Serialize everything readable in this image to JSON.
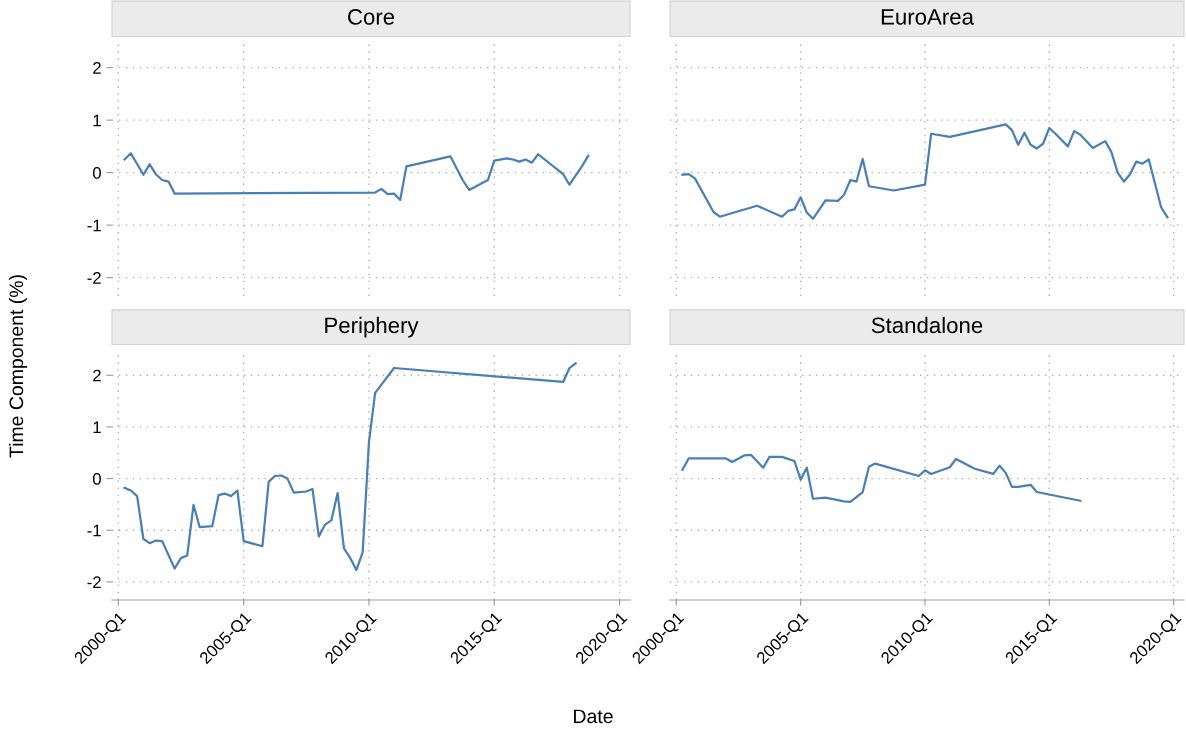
{
  "chart_data": [
    {
      "type": "line",
      "title": "Core",
      "ylabel": "Time Component (%)",
      "xlim": [
        "1999-10",
        "2020-06"
      ],
      "xticks": [
        "2000-01",
        "2005-01",
        "2010-01",
        "2015-01",
        "2020-01"
      ],
      "ylim": [
        -2.35,
        2.45
      ],
      "yticks": [
        -2,
        -1,
        0,
        1,
        2
      ],
      "tick_labels": "y",
      "grid": true,
      "series": [
        {
          "color": "#4a7fb5",
          "x": [
            "2000-04",
            "2000-07",
            "2001-01",
            "2001-04",
            "2001-07",
            "2001-10",
            "2002-01",
            "2002-04",
            "2010-04",
            "2010-07",
            "2010-10",
            "2011-01",
            "2011-04",
            "2011-07",
            "2013-04",
            "2013-10",
            "2014-01",
            "2014-10",
            "2015-01",
            "2015-07",
            "2015-10",
            "2016-01",
            "2016-04",
            "2016-07",
            "2016-10",
            "2017-10",
            "2018-01",
            "2018-07",
            "2018-10"
          ],
          "values": [
            0.25,
            0.37,
            -0.04,
            0.16,
            -0.03,
            -0.14,
            -0.17,
            -0.4,
            -0.38,
            -0.31,
            -0.41,
            -0.4,
            -0.52,
            0.12,
            0.31,
            -0.15,
            -0.33,
            -0.14,
            0.23,
            0.27,
            0.25,
            0.21,
            0.25,
            0.19,
            0.35,
            -0.03,
            -0.23,
            0.12,
            0.32
          ]
        }
      ]
    },
    {
      "type": "line",
      "title": "EuroArea",
      "xlim": [
        "1999-10",
        "2020-06"
      ],
      "xticks": [
        "2000-01",
        "2005-01",
        "2010-01",
        "2015-01",
        "2020-01"
      ],
      "ylim": [
        -2.35,
        2.45
      ],
      "yticks": [
        -2,
        -1,
        0,
        1,
        2
      ],
      "tick_labels": false,
      "grid": true,
      "series": [
        {
          "color": "#4a7fb5",
          "x": [
            "2000-04",
            "2000-07",
            "2000-10",
            "2001-07",
            "2001-10",
            "2003-04",
            "2004-04",
            "2004-07",
            "2004-10",
            "2005-01",
            "2005-04",
            "2005-07",
            "2006-01",
            "2006-07",
            "2006-10",
            "2007-01",
            "2007-04",
            "2007-07",
            "2007-10",
            "2008-10",
            "2010-01",
            "2010-04",
            "2011-01",
            "2013-04",
            "2013-07",
            "2013-10",
            "2014-01",
            "2014-04",
            "2014-07",
            "2014-10",
            "2015-01",
            "2015-04",
            "2015-10",
            "2016-01",
            "2016-04",
            "2016-10",
            "2017-04",
            "2017-07",
            "2017-10",
            "2018-01",
            "2018-04",
            "2018-07",
            "2018-10",
            "2019-01",
            "2019-07",
            "2019-10"
          ],
          "values": [
            -0.04,
            -0.03,
            -0.11,
            -0.75,
            -0.84,
            -0.63,
            -0.84,
            -0.73,
            -0.7,
            -0.47,
            -0.76,
            -0.88,
            -0.53,
            -0.54,
            -0.42,
            -0.14,
            -0.17,
            0.26,
            -0.26,
            -0.34,
            -0.23,
            0.74,
            0.68,
            0.92,
            0.81,
            0.53,
            0.76,
            0.53,
            0.46,
            0.55,
            0.85,
            0.74,
            0.5,
            0.79,
            0.72,
            0.47,
            0.6,
            0.39,
            0.0,
            -0.17,
            -0.03,
            0.21,
            0.17,
            0.25,
            -0.66,
            -0.85
          ]
        }
      ]
    },
    {
      "type": "line",
      "title": "Periphery",
      "xlabel": "Date",
      "xlim": [
        "1999-10",
        "2020-06"
      ],
      "xticks": [
        {
          "value": "2000-01",
          "label": "2000-Q1"
        },
        {
          "value": "2005-01",
          "label": "2005-Q1"
        },
        {
          "value": "2010-01",
          "label": "2010-Q1"
        },
        {
          "value": "2015-01",
          "label": "2015-Q1"
        },
        {
          "value": "2020-01",
          "label": "2020-Q1"
        }
      ],
      "ylim": [
        -2.35,
        2.45
      ],
      "yticks": [
        -2,
        -1,
        0,
        1,
        2
      ],
      "grid": true,
      "series": [
        {
          "color": "#4a7fb5",
          "x": [
            "2000-04",
            "2000-07",
            "2000-10",
            "2001-01",
            "2001-04",
            "2001-07",
            "2001-10",
            "2002-04",
            "2002-07",
            "2002-10",
            "2003-01",
            "2003-04",
            "2003-10",
            "2004-01",
            "2004-04",
            "2004-07",
            "2004-10",
            "2005-01",
            "2005-10",
            "2006-01",
            "2006-04",
            "2006-07",
            "2006-10",
            "2007-01",
            "2007-07",
            "2007-10",
            "2008-01",
            "2008-04",
            "2008-07",
            "2008-10",
            "2009-01",
            "2009-04",
            "2009-07",
            "2009-10",
            "2010-01",
            "2010-04",
            "2011-01",
            "2017-10",
            "2018-01",
            "2018-04"
          ],
          "values": [
            -0.18,
            -0.23,
            -0.34,
            -1.17,
            -1.25,
            -1.2,
            -1.21,
            -1.74,
            -1.54,
            -1.49,
            -0.51,
            -0.94,
            -0.92,
            -0.32,
            -0.29,
            -0.34,
            -0.23,
            -1.21,
            -1.31,
            -0.06,
            0.05,
            0.06,
            0.0,
            -0.27,
            -0.25,
            -0.2,
            -1.12,
            -0.89,
            -0.81,
            -0.28,
            -1.35,
            -1.53,
            -1.77,
            -1.43,
            0.71,
            1.66,
            2.14,
            1.87,
            2.14,
            2.23
          ]
        }
      ]
    },
    {
      "type": "line",
      "title": "Standalone",
      "xlim": [
        "1999-10",
        "2020-06"
      ],
      "xticks": [
        {
          "value": "2000-01",
          "label": "2000-Q1"
        },
        {
          "value": "2005-01",
          "label": "2005-Q1"
        },
        {
          "value": "2010-01",
          "label": "2010-Q1"
        },
        {
          "value": "2015-01",
          "label": "2015-Q1"
        },
        {
          "value": "2020-01",
          "label": "2020-Q1"
        }
      ],
      "ylim": [
        -2.35,
        2.45
      ],
      "yticks": [
        -2,
        -1,
        0,
        1,
        2
      ],
      "tick_labels": "x",
      "grid": true,
      "series": [
        {
          "color": "#4a7fb5",
          "x": [
            "2000-04",
            "2000-07",
            "2002-01",
            "2002-04",
            "2002-10",
            "2003-01",
            "2003-07",
            "2003-10",
            "2004-04",
            "2004-10",
            "2005-01",
            "2005-04",
            "2005-07",
            "2006-01",
            "2006-10",
            "2007-01",
            "2007-07",
            "2007-10",
            "2008-01",
            "2009-10",
            "2010-01",
            "2010-04",
            "2011-01",
            "2011-04",
            "2012-01",
            "2012-10",
            "2013-01",
            "2013-04",
            "2013-07",
            "2013-10",
            "2014-04",
            "2014-07",
            "2016-04"
          ],
          "values": [
            0.17,
            0.39,
            0.39,
            0.32,
            0.45,
            0.46,
            0.21,
            0.42,
            0.42,
            0.34,
            -0.02,
            0.21,
            -0.39,
            -0.37,
            -0.44,
            -0.45,
            -0.26,
            0.23,
            0.29,
            0.05,
            0.16,
            0.09,
            0.22,
            0.38,
            0.19,
            0.09,
            0.25,
            0.11,
            -0.16,
            -0.16,
            -0.12,
            -0.26,
            -0.43
          ]
        }
      ]
    }
  ]
}
